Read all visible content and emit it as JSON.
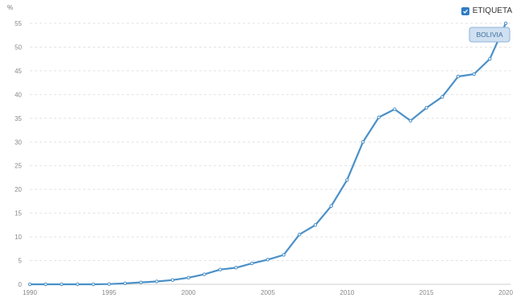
{
  "chart_data": {
    "type": "line",
    "y_unit": "%",
    "x": [
      1990,
      1991,
      1992,
      1993,
      1994,
      1995,
      1996,
      1997,
      1998,
      1999,
      2000,
      2001,
      2002,
      2003,
      2004,
      2005,
      2006,
      2007,
      2008,
      2009,
      2010,
      2011,
      2012,
      2013,
      2014,
      2015,
      2016,
      2017,
      2018,
      2019,
      2020
    ],
    "series": [
      {
        "name": "BOLIVIA",
        "color": "#4a90c8",
        "values": [
          0,
          0,
          0,
          0,
          0,
          0.05,
          0.2,
          0.4,
          0.6,
          0.9,
          1.4,
          2.1,
          3.1,
          3.5,
          4.4,
          5.2,
          6.2,
          10.5,
          12.5,
          16.5,
          22,
          30,
          35.2,
          36.9,
          34.5,
          37.2,
          39.5,
          43.8,
          44.3,
          47.5,
          55
        ]
      }
    ],
    "xticks": [
      1990,
      1995,
      2000,
      2005,
      2010,
      2015,
      2020
    ],
    "yticks": [
      0,
      5,
      10,
      15,
      20,
      25,
      30,
      35,
      40,
      45,
      50,
      55
    ],
    "ylim": [
      0,
      55
    ],
    "xlim": [
      1990,
      2020
    ],
    "grid": "horizontal dashed",
    "legend": {
      "checkbox_label": "ETIQUETA",
      "checked": true,
      "position": "top-right"
    },
    "annotation": "BOLIVIA"
  }
}
